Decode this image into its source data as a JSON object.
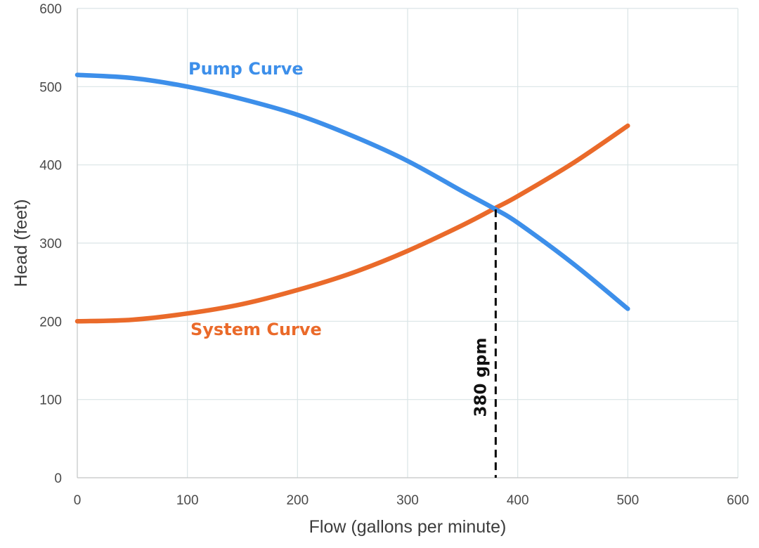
{
  "chart_data": {
    "type": "line",
    "title": "",
    "xlabel": "Flow (gallons per minute)",
    "ylabel": "Head (feet)",
    "xlim": [
      0,
      600
    ],
    "ylim": [
      0,
      600
    ],
    "xticks": [
      "0",
      "100",
      "200",
      "300",
      "400",
      "500",
      "600"
    ],
    "yticks": [
      "0",
      "100",
      "200",
      "300",
      "400",
      "500",
      "600"
    ],
    "grid": true,
    "series": [
      {
        "name": "Pump Curve",
        "color": "#3d8fea",
        "x": [
          0,
          50,
          100,
          150,
          200,
          250,
          300,
          350,
          380,
          400,
          450,
          500
        ],
        "y": [
          515,
          511,
          500,
          484,
          464,
          437,
          405,
          366,
          343,
          326,
          274,
          216
        ]
      },
      {
        "name": "System Curve",
        "color": "#ea6a2a",
        "x": [
          0,
          50,
          100,
          150,
          200,
          250,
          300,
          350,
          380,
          400,
          450,
          500
        ],
        "y": [
          200,
          202,
          210,
          222,
          240,
          262,
          290,
          323,
          345,
          360,
          402,
          450
        ]
      }
    ],
    "annotations": [
      {
        "text": "380 gpm",
        "x": 380,
        "y": 343,
        "style": "dashed vertical drop line to x-axis"
      }
    ]
  }
}
